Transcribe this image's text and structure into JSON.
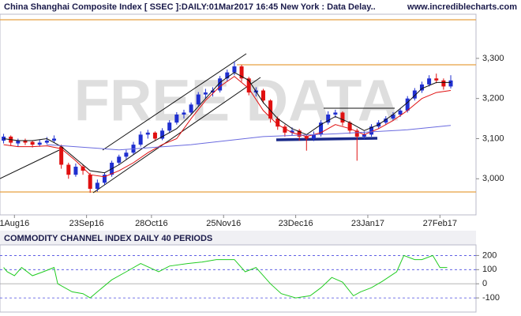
{
  "chart_data": [
    {
      "type": "candlestick",
      "title": "China Shanghai Composite Index [ SSEC ]:DAILY:01Mar2017 16:45 New York : Data Delay..",
      "source": "www.incrediblecharts.com",
      "watermark": "FREE DATA",
      "xlim": [
        -1,
        131
      ],
      "xticks": [
        {
          "value": 3,
          "label": "1Aug16"
        },
        {
          "value": 23,
          "label": "23Sep16"
        },
        {
          "value": 41,
          "label": "28Oct16"
        },
        {
          "value": 61,
          "label": "25Nov16"
        },
        {
          "value": 81,
          "label": "23Dec16"
        },
        {
          "value": 101,
          "label": "23Jan17"
        },
        {
          "value": 121,
          "label": "27Feb17"
        }
      ],
      "ylim": [
        2910,
        3410
      ],
      "yticks": [
        {
          "value": 3000,
          "label": "3,000"
        },
        {
          "value": 3100,
          "label": "3,100"
        },
        {
          "value": 3200,
          "label": "3,200"
        },
        {
          "value": 3300,
          "label": "3,300"
        }
      ],
      "up_color": "#1f2fd0",
      "down_color": "#e01010",
      "candles": {
        "x": [
          0,
          2,
          4,
          6,
          8,
          10,
          12,
          14,
          16,
          18,
          20,
          22,
          24,
          26,
          28,
          30,
          32,
          34,
          36,
          38,
          40,
          42,
          44,
          46,
          48,
          50,
          52,
          54,
          56,
          58,
          60,
          62,
          64,
          66,
          68,
          70,
          72,
          74,
          76,
          78,
          80,
          82,
          84,
          86,
          88,
          90,
          92,
          94,
          96,
          98,
          100,
          102,
          104,
          106,
          108,
          110,
          112,
          114,
          116,
          118,
          120,
          122,
          124
        ],
        "ohlc": [
          [
            3095,
            3112,
            3088,
            3105
          ],
          [
            3105,
            3108,
            3082,
            3090
          ],
          [
            3088,
            3100,
            3080,
            3095
          ],
          [
            3095,
            3100,
            3084,
            3090
          ],
          [
            3092,
            3096,
            3078,
            3085
          ],
          [
            3085,
            3098,
            3080,
            3090
          ],
          [
            3090,
            3104,
            3086,
            3095
          ],
          [
            3095,
            3108,
            3090,
            3100
          ],
          [
            3080,
            3085,
            3025,
            3035
          ],
          [
            3035,
            3040,
            3000,
            3010
          ],
          [
            3010,
            3038,
            3005,
            3030
          ],
          [
            3030,
            3035,
            3010,
            3020
          ],
          [
            3010,
            3015,
            2965,
            2975
          ],
          [
            2975,
            2998,
            2968,
            2990
          ],
          [
            2990,
            3015,
            2985,
            3010
          ],
          [
            3010,
            3045,
            3005,
            3040
          ],
          [
            3040,
            3060,
            3035,
            3055
          ],
          [
            3055,
            3072,
            3048,
            3065
          ],
          [
            3065,
            3092,
            3060,
            3085
          ],
          [
            3085,
            3118,
            3080,
            3110
          ],
          [
            3110,
            3122,
            3100,
            3115
          ],
          [
            3115,
            3118,
            3095,
            3100
          ],
          [
            3100,
            3126,
            3096,
            3120
          ],
          [
            3120,
            3146,
            3115,
            3140
          ],
          [
            3140,
            3166,
            3135,
            3160
          ],
          [
            3160,
            3172,
            3150,
            3165
          ],
          [
            3165,
            3190,
            3160,
            3185
          ],
          [
            3185,
            3216,
            3180,
            3210
          ],
          [
            3210,
            3224,
            3200,
            3215
          ],
          [
            3215,
            3228,
            3205,
            3220
          ],
          [
            3220,
            3256,
            3215,
            3250
          ],
          [
            3250,
            3272,
            3242,
            3265
          ],
          [
            3265,
            3292,
            3258,
            3280
          ],
          [
            3280,
            3284,
            3242,
            3250
          ],
          [
            3250,
            3254,
            3208,
            3215
          ],
          [
            3215,
            3228,
            3205,
            3220
          ],
          [
            3220,
            3224,
            3188,
            3195
          ],
          [
            3195,
            3198,
            3140,
            3150
          ],
          [
            3150,
            3155,
            3122,
            3130
          ],
          [
            3130,
            3135,
            3105,
            3115
          ],
          [
            3115,
            3128,
            3108,
            3120
          ],
          [
            3120,
            3124,
            3095,
            3105
          ],
          [
            3105,
            3110,
            3070,
            3100
          ],
          [
            3100,
            3118,
            3094,
            3110
          ],
          [
            3110,
            3146,
            3105,
            3140
          ],
          [
            3140,
            3168,
            3135,
            3160
          ],
          [
            3160,
            3172,
            3152,
            3165
          ],
          [
            3165,
            3168,
            3132,
            3140
          ],
          [
            3140,
            3144,
            3112,
            3120
          ],
          [
            3120,
            3125,
            3045,
            3105
          ],
          [
            3105,
            3118,
            3098,
            3110
          ],
          [
            3110,
            3136,
            3105,
            3130
          ],
          [
            3130,
            3146,
            3125,
            3140
          ],
          [
            3140,
            3156,
            3134,
            3150
          ],
          [
            3150,
            3166,
            3144,
            3160
          ],
          [
            3160,
            3176,
            3154,
            3170
          ],
          [
            3170,
            3206,
            3165,
            3200
          ],
          [
            3200,
            3226,
            3195,
            3220
          ],
          [
            3220,
            3242,
            3214,
            3235
          ],
          [
            3235,
            3258,
            3230,
            3250
          ],
          [
            3250,
            3262,
            3238,
            3245
          ],
          [
            3245,
            3250,
            3222,
            3230
          ],
          [
            3230,
            3258,
            3225,
            3245
          ]
        ]
      },
      "series": [
        {
          "color": "#e01010",
          "x": [
            0,
            4,
            8,
            12,
            16,
            20,
            24,
            28,
            32,
            36,
            40,
            44,
            48,
            52,
            56,
            60,
            64,
            68,
            72,
            76,
            80,
            84,
            88,
            92,
            96,
            100,
            104,
            108,
            112,
            116,
            120,
            124
          ],
          "values": [
            3085,
            3080,
            3080,
            3082,
            3075,
            3045,
            3010,
            3005,
            3020,
            3040,
            3065,
            3085,
            3100,
            3150,
            3195,
            3230,
            3255,
            3225,
            3170,
            3135,
            3115,
            3105,
            3115,
            3135,
            3125,
            3110,
            3125,
            3145,
            3170,
            3200,
            3215,
            3220
          ]
        },
        {
          "color": "#111111",
          "x": [
            0,
            4,
            8,
            12,
            16,
            20,
            24,
            28,
            32,
            36,
            40,
            44,
            48,
            52,
            56,
            60,
            64,
            68,
            72,
            76,
            80,
            84,
            88,
            92,
            96,
            100,
            104,
            108,
            112,
            116,
            120,
            124
          ],
          "values": [
            3100,
            3095,
            3095,
            3100,
            3080,
            3050,
            3020,
            3015,
            3035,
            3060,
            3085,
            3105,
            3125,
            3160,
            3200,
            3240,
            3265,
            3245,
            3190,
            3150,
            3125,
            3110,
            3135,
            3155,
            3140,
            3120,
            3135,
            3160,
            3190,
            3225,
            3240,
            3240
          ]
        },
        {
          "color": "#6a6adf",
          "x": [
            12,
            32,
            52,
            72,
            92,
            112,
            124
          ],
          "values": [
            3085,
            3072,
            3085,
            3105,
            3112,
            3122,
            3133
          ]
        }
      ]
    },
    {
      "type": "line",
      "title": "COMMODITY CHANNEL INDEX DAILY 40 PERIODS",
      "xlim": [
        -1,
        131
      ],
      "ylim": [
        -200,
        275
      ],
      "yticks": [
        -100,
        0,
        100,
        200
      ],
      "grid": true,
      "series": [
        {
          "color": "#22cc22",
          "x": [
            0,
            1,
            3,
            5,
            8,
            11,
            14,
            15,
            19,
            22,
            24,
            26,
            30,
            34,
            38,
            43,
            46,
            51,
            55,
            59,
            64,
            67,
            70,
            74,
            77,
            81,
            85,
            88,
            91,
            94,
            97,
            99,
            102,
            105,
            109,
            111,
            114,
            116,
            119,
            121,
            123
          ],
          "values": [
            115,
            85,
            57,
            115,
            57,
            85,
            115,
            0,
            -57,
            -70,
            -100,
            -57,
            28,
            85,
            143,
            85,
            125,
            143,
            154,
            171,
            171,
            85,
            115,
            0,
            -70,
            -100,
            -85,
            -28,
            45,
            11,
            -85,
            -57,
            -28,
            17,
            85,
            200,
            171,
            171,
            200,
            115,
            115
          ]
        }
      ]
    }
  ]
}
